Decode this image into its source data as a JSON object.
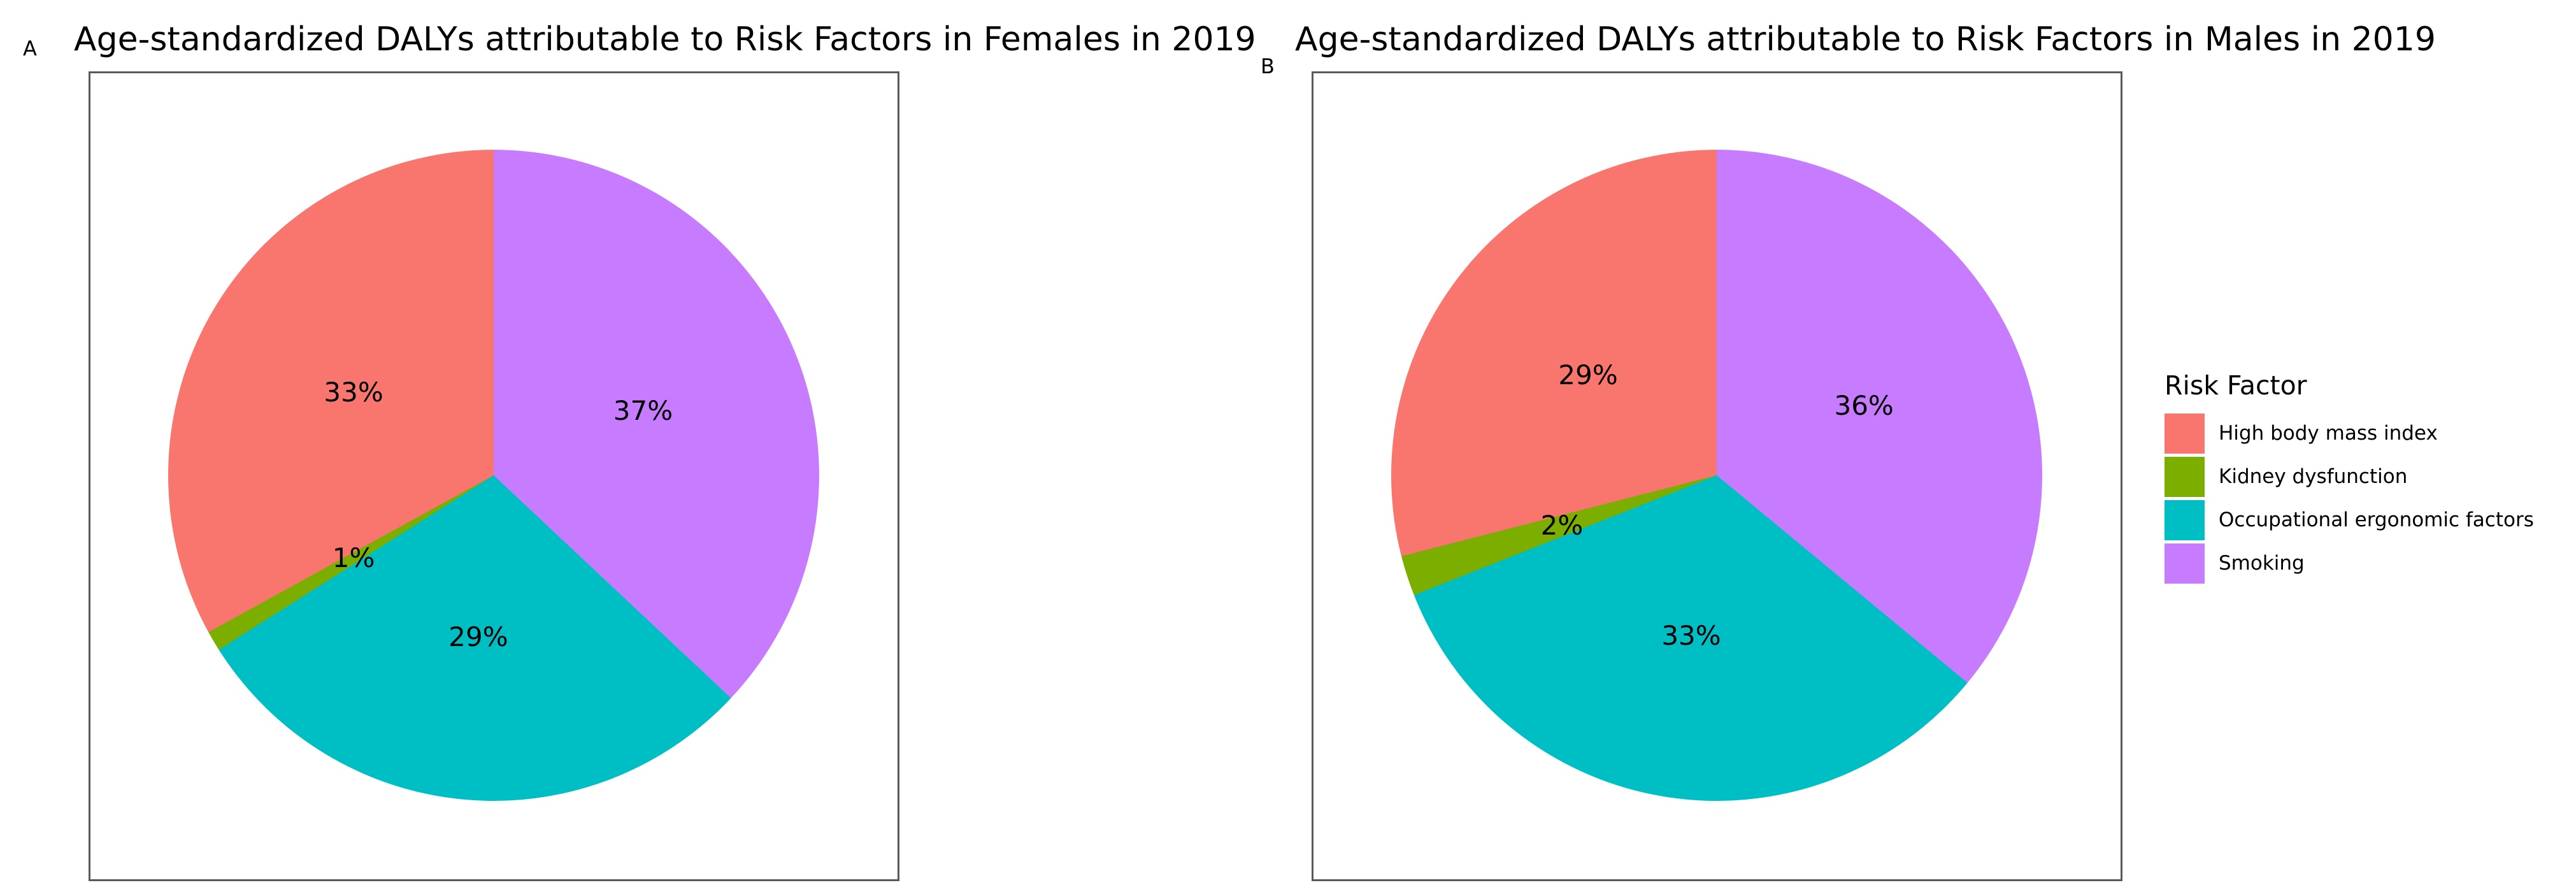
{
  "figure": {
    "background": "#FFFFFF",
    "panels": [
      {
        "letter": "A",
        "title": "Age-standardized DALYs attributable to Risk Factors in Females in 2019"
      },
      {
        "letter": "B",
        "title": "Age-standardized DALYs attributable to Risk Factors in Males in 2019"
      }
    ],
    "legend": {
      "title": "Risk Factor",
      "entries": [
        {
          "label": "High body mass index",
          "color": "#F8766D"
        },
        {
          "label": "Kidney dysfunction",
          "color": "#7CAE00"
        },
        {
          "label": "Occupational ergonomic factors",
          "color": "#00BFC4"
        },
        {
          "label": "Smoking",
          "color": "#C77CFF"
        }
      ]
    }
  },
  "chart_data": [
    {
      "type": "pie",
      "panel": "A",
      "title": "Age-standardized DALYs attributable to Risk Factors in Females in 2019",
      "categories": [
        "High body mass index",
        "Kidney dysfunction",
        "Occupational ergonomic factors",
        "Smoking"
      ],
      "values": [
        33,
        1,
        29,
        37
      ],
      "unit": "percent",
      "slice_labels": [
        "33%",
        "1%",
        "29%",
        "37%"
      ],
      "colors": [
        "#F8766D",
        "#7CAE00",
        "#00BFC4",
        "#C77CFF"
      ],
      "start_angle_deg": 90,
      "direction": "counterclockwise",
      "label_radius_fraction": 0.5,
      "legend_position": "shared-right"
    },
    {
      "type": "pie",
      "panel": "B",
      "title": "Age-standardized DALYs attributable to Risk Factors in Males in 2019",
      "categories": [
        "High body mass index",
        "Kidney dysfunction",
        "Occupational ergonomic factors",
        "Smoking"
      ],
      "values": [
        29,
        2,
        33,
        36
      ],
      "unit": "percent",
      "slice_labels": [
        "29%",
        "2%",
        "33%",
        "36%"
      ],
      "colors": [
        "#F8766D",
        "#7CAE00",
        "#00BFC4",
        "#C77CFF"
      ],
      "start_angle_deg": 90,
      "direction": "counterclockwise",
      "label_radius_fraction": 0.5,
      "legend_title": "Risk Factor",
      "legend_position": "right"
    }
  ]
}
